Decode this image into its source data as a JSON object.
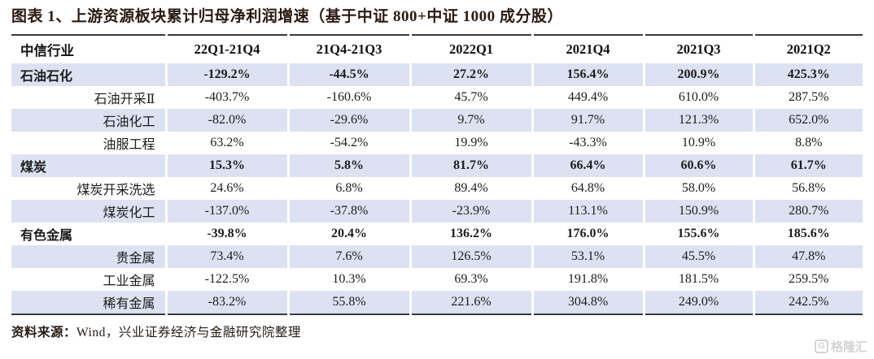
{
  "title": "图表 1、上游资源板块累计归母净利润增速（基于中证 800+中证 1000 成分股）",
  "chart_data": {
    "type": "table",
    "title": "上游资源板块累计归母净利润增速（基于中证 800+中证 1000 成分股）",
    "columns": [
      "中信行业",
      "22Q1-21Q4",
      "21Q4-21Q3",
      "2022Q1",
      "2021Q4",
      "2021Q3",
      "2021Q2"
    ],
    "rows": [
      {
        "industry": "石油石化",
        "level": "category",
        "values": [
          "-129.2%",
          "-44.5%",
          "27.2%",
          "156.4%",
          "200.9%",
          "425.3%"
        ]
      },
      {
        "industry": "石油开采Ⅱ",
        "level": "sub",
        "values": [
          "-403.7%",
          "-160.6%",
          "45.7%",
          "449.4%",
          "610.0%",
          "287.5%"
        ]
      },
      {
        "industry": "石油化工",
        "level": "sub",
        "values": [
          "-82.0%",
          "-29.6%",
          "9.7%",
          "91.7%",
          "121.3%",
          "652.0%"
        ]
      },
      {
        "industry": "油服工程",
        "level": "sub",
        "values": [
          "63.2%",
          "-54.2%",
          "19.9%",
          "-43.3%",
          "10.9%",
          "8.8%"
        ]
      },
      {
        "industry": "煤炭",
        "level": "category",
        "values": [
          "15.3%",
          "5.8%",
          "81.7%",
          "66.4%",
          "60.6%",
          "61.7%"
        ]
      },
      {
        "industry": "煤炭开采洗选",
        "level": "sub",
        "values": [
          "24.6%",
          "6.8%",
          "89.4%",
          "64.8%",
          "58.0%",
          "56.8%"
        ]
      },
      {
        "industry": "煤炭化工",
        "level": "sub",
        "values": [
          "-137.0%",
          "-37.8%",
          "-23.9%",
          "113.1%",
          "150.9%",
          "280.7%"
        ]
      },
      {
        "industry": "有色金属",
        "level": "category",
        "values": [
          "-39.8%",
          "20.4%",
          "136.2%",
          "176.0%",
          "155.6%",
          "185.6%"
        ]
      },
      {
        "industry": "贵金属",
        "level": "sub",
        "values": [
          "73.4%",
          "7.6%",
          "126.5%",
          "53.1%",
          "45.5%",
          "47.8%"
        ]
      },
      {
        "industry": "工业金属",
        "level": "sub",
        "values": [
          "-122.5%",
          "10.3%",
          "69.3%",
          "191.8%",
          "181.5%",
          "259.5%"
        ]
      },
      {
        "industry": "稀有金属",
        "level": "sub",
        "values": [
          "-83.2%",
          "55.8%",
          "221.6%",
          "304.8%",
          "249.0%",
          "242.5%"
        ]
      }
    ],
    "layout": {
      "zebra_highlight": "odd rows light blue",
      "bold_rows": "category rows and header"
    }
  },
  "footer": {
    "source_label": "资料来源：",
    "source_text": "Wind，兴业证券经济与金融研究院整理"
  },
  "watermark": {
    "icon": "gelonghui-logo-icon",
    "icon_letter": "G",
    "logo_text": "格隆汇"
  },
  "colors": {
    "row_highlight": "#dce2f1",
    "table_border": "#3a3a3a",
    "title_color": "#2b1a10",
    "text_color": "#1c1c1c",
    "watermark_gray": "#d3d3d3"
  }
}
